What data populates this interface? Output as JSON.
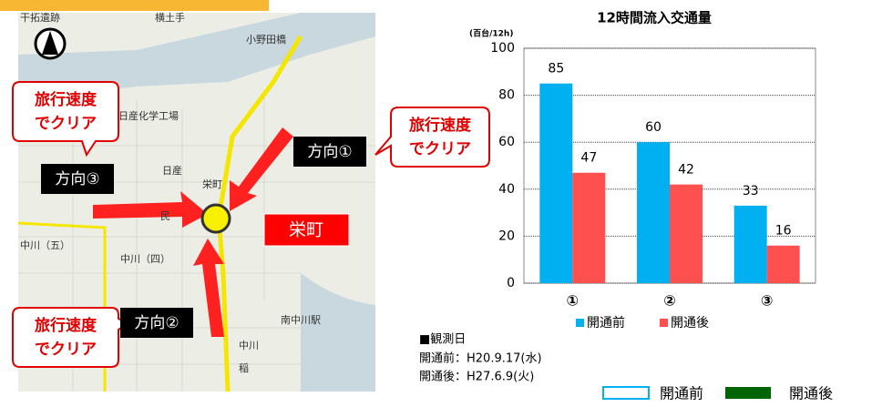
{
  "chart_data": {
    "type": "bar",
    "title": "12時間流入交通量",
    "unit_label": "(百台/12h)",
    "categories": [
      "①",
      "②",
      "③"
    ],
    "series": [
      {
        "name": "開通前",
        "color": "#00b0f0",
        "values": [
          85,
          60,
          33
        ]
      },
      {
        "name": "開通後",
        "color": "#ff5050",
        "values": [
          47,
          42,
          16
        ]
      }
    ],
    "ylim": [
      0,
      100
    ],
    "yticks": [
      0,
      20,
      40,
      60,
      80,
      100
    ],
    "grid": true,
    "legend": "bottom"
  },
  "map": {
    "labels": [
      "干拓遺跡",
      "横土手",
      "小野田橋",
      "日産化学工場",
      "日産",
      "栄町",
      "民",
      "中川（五）",
      "中川（四）",
      "南中川駅",
      "中川",
      "稲"
    ],
    "callouts": [
      [
        "旅行速度",
        "でクリア"
      ],
      [
        "旅行速度",
        "でクリア"
      ],
      [
        "旅行速度",
        "でクリア"
      ]
    ],
    "directions": [
      "方向①",
      "方向②",
      "方向③"
    ],
    "place": "栄町"
  },
  "notes": {
    "heading": "■観測日",
    "before": "開通前：H20.9.17(水)",
    "after": "開通後：H27.6.9(火)"
  },
  "legend": {
    "before": "開通前",
    "after": "開通後"
  }
}
